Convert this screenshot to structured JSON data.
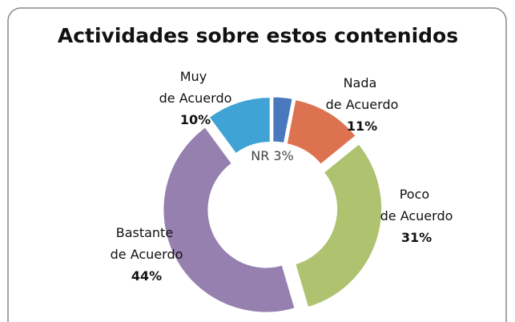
{
  "chart_data": {
    "type": "doughnut",
    "title": "Actividades sobre estos contenidos",
    "categories": [
      "NR",
      "Nada de Acuerdo",
      "Poco de Acuerdo",
      "Bastante de Acuerdo",
      "Muy de Acuerdo"
    ],
    "values": [
      3,
      11,
      31,
      44,
      10
    ],
    "value_labels": [
      "3%",
      "11%",
      "31%",
      "44%",
      "10%"
    ],
    "colors": [
      "#4a78bd",
      "#dc7250",
      "#afc26f",
      "#9580b0",
      "#3fa3d6"
    ]
  }
}
